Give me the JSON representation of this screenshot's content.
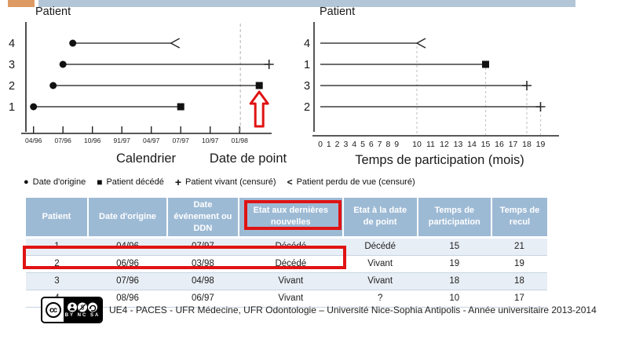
{
  "accent_colors": {
    "orange_bar": "#dd9a62",
    "blue_bar": "#b3c6d7",
    "table_header_blue": "#9dbad5",
    "highlight_red": "#e01313"
  },
  "chart_data": [
    {
      "id": "calendrier",
      "type": "timeline",
      "y_axis_title": "Patient",
      "xlabel": "Calendrier",
      "secondary_xlabel": "Date de point",
      "x_ticks": [
        "04/96",
        "07/96",
        "10/96",
        "91/97",
        "04/97",
        "07/97",
        "10/97",
        "01/98"
      ],
      "x_unit": "months since 04/96, one tick per quarter",
      "date_de_point_month": 21,
      "rows": [
        {
          "patient": "4",
          "start": 4,
          "end": 14,
          "end_marker": "perdu_de_vue",
          "start_dot": true
        },
        {
          "patient": "3",
          "start": 3,
          "end": 24,
          "end_marker": "vivant_censure",
          "start_dot": true
        },
        {
          "patient": "2",
          "start": 2,
          "end": 23,
          "end_marker": "decede",
          "start_dot": true,
          "annotated_red_arrow": true
        },
        {
          "patient": "1",
          "start": 0,
          "end": 15,
          "end_marker": "decede",
          "start_dot": true
        }
      ]
    },
    {
      "id": "temps-de-participation",
      "type": "timeline",
      "y_axis_title": "Patient",
      "xlabel": "Temps de participation (mois)",
      "x_ticks": [
        "0",
        "1",
        "2",
        "3",
        "4",
        "5",
        "6",
        "7",
        "8",
        "9",
        "10",
        "11",
        "12",
        "13",
        "14",
        "15",
        "16",
        "17",
        "18",
        "19"
      ],
      "x_range": [
        0,
        19
      ],
      "rows": [
        {
          "patient": "4",
          "start": 0,
          "end": 10,
          "end_marker": "perdu_de_vue",
          "dropline": true
        },
        {
          "patient": "1",
          "start": 0,
          "end": 15,
          "end_marker": "decede",
          "dropline": true
        },
        {
          "patient": "3",
          "start": 0,
          "end": 18,
          "end_marker": "vivant_censure",
          "dropline": true
        },
        {
          "patient": "2",
          "start": 0,
          "end": 19,
          "end_marker": "vivant_censure",
          "dropline": true
        }
      ]
    }
  ],
  "legend": {
    "items": [
      {
        "marker": "dot",
        "label": "Date d'origine"
      },
      {
        "marker": "square",
        "label": "Patient décédé"
      },
      {
        "marker": "plus",
        "label": "Patient vivant (censuré)"
      },
      {
        "marker": "chevron",
        "label": "Patient perdu de vue (censuré)"
      }
    ]
  },
  "table": {
    "headers": [
      "Patient",
      "Date d'origine",
      "Date événement ou DDN",
      "Etat aux dernières nouvelles",
      "Etat à la date de point",
      "Temps de participation",
      "Temps de recul"
    ],
    "rows": [
      [
        "1",
        "04/96",
        "07/97",
        "Décédé",
        "Décédé",
        "15",
        "21"
      ],
      [
        "2",
        "06/96",
        "03/98",
        "Décédé",
        "Vivant",
        "19",
        "19"
      ],
      [
        "3",
        "07/96",
        "04/98",
        "Vivant",
        "Vivant",
        "18",
        "18"
      ],
      [
        "4",
        "08/96",
        "06/97",
        "Vivant",
        "?",
        "10",
        "17"
      ]
    ],
    "highlighted_header_column": "Etat aux dernières nouvelles",
    "highlighted_row_patient": "2"
  },
  "footer": {
    "license": {
      "cc": "cc",
      "caption": "BY NC SA"
    },
    "text": "UE4 - PACES - UFR Médecine, UFR Odontologie – Université Nice-Sophia Antipolis - Année universitaire 2013-2014"
  }
}
